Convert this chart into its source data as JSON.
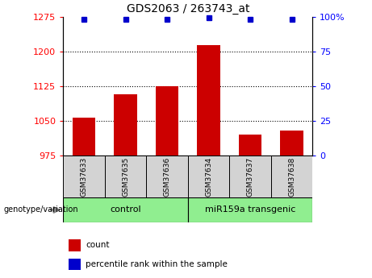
{
  "title": "GDS2063 / 263743_at",
  "samples": [
    "GSM37633",
    "GSM37635",
    "GSM37636",
    "GSM37634",
    "GSM37637",
    "GSM37638"
  ],
  "bar_values": [
    1057,
    1108,
    1125,
    1213,
    1020,
    1030
  ],
  "percentile_values": [
    98,
    98,
    98,
    99,
    98,
    98
  ],
  "bar_color": "#cc0000",
  "dot_color": "#0000cc",
  "ylim_left": [
    975,
    1275
  ],
  "yticks_left": [
    975,
    1050,
    1125,
    1200,
    1275
  ],
  "ylim_right": [
    0,
    100
  ],
  "yticks_right": [
    0,
    25,
    50,
    75,
    100
  ],
  "grid_values": [
    1050,
    1125,
    1200
  ],
  "group_labels": [
    "control",
    "miR159a transgenic"
  ],
  "group_color": "#90ee90",
  "legend_label_bar": "count",
  "legend_label_dot": "percentile rank within the sample",
  "genotype_label": "genotype/variation",
  "bar_width": 0.55,
  "figsize": [
    4.61,
    3.45
  ],
  "dpi": 100
}
